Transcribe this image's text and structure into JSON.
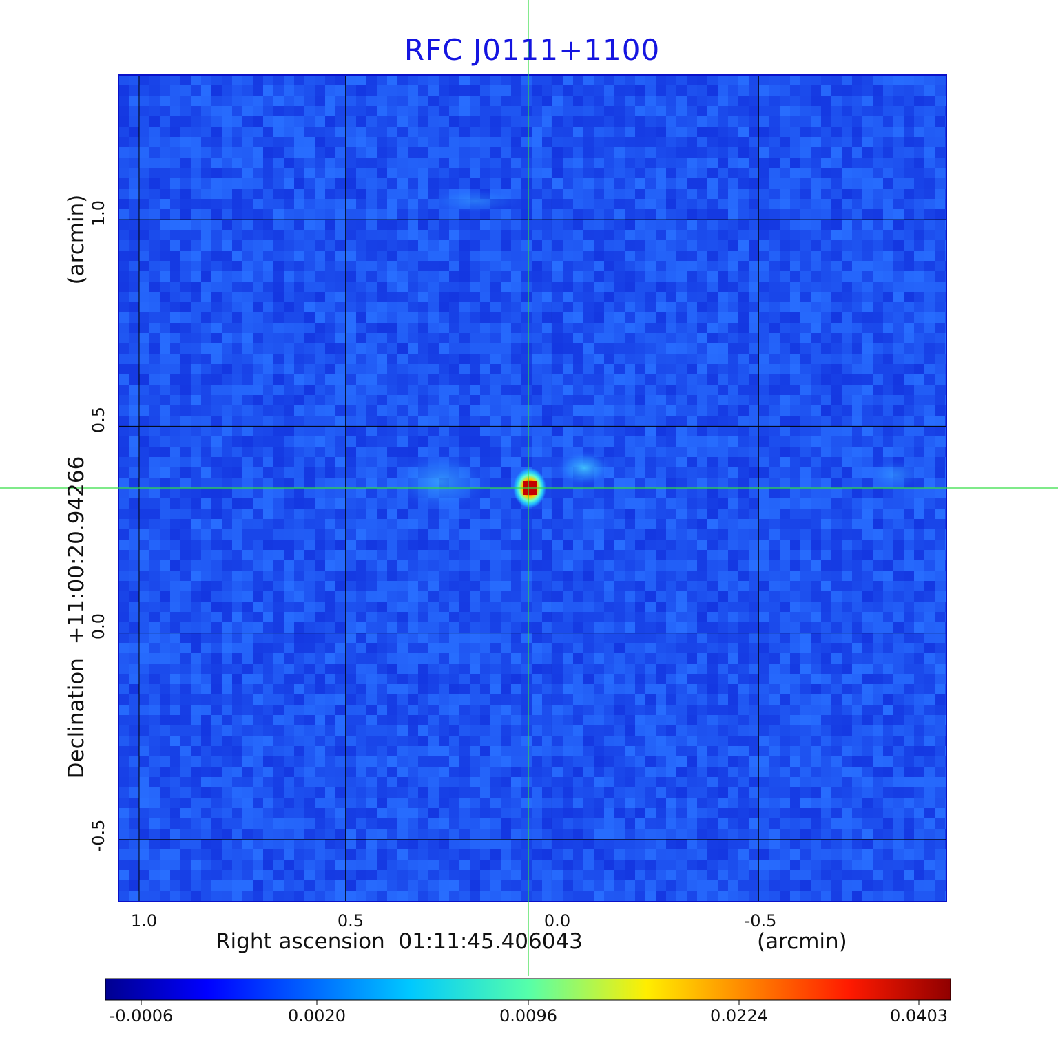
{
  "figure": {
    "title": "RFC J0111+1100",
    "xlabel": "Right ascension  01:11:45.406043",
    "xunit": "(arcmin)",
    "ylabel": "Declination  +11:00:20.94266",
    "yunit": "(arcmin)",
    "x_ticks": [
      "1.0",
      "0.5",
      "0.0",
      "-0.5"
    ],
    "y_ticks": [
      "1.0",
      "0.5",
      "0.0",
      "-0.5"
    ],
    "colorbar_ticks": [
      "-0.0006",
      "0.0020",
      "0.0096",
      "0.0224",
      "0.0403"
    ]
  },
  "chart_data": {
    "type": "heatmap",
    "title": "RFC J0111+1100",
    "xlabel": "Right ascension  01:11:45.406043 (arcmin)",
    "ylabel": "Declination  +11:00:20.94266 (arcmin)",
    "x_ticks": [
      1.0,
      0.5,
      0.0,
      -0.5
    ],
    "y_ticks": [
      1.0,
      0.5,
      0.0,
      -0.5
    ],
    "xlim": [
      1.05,
      -0.955
    ],
    "ylim": [
      -0.65,
      1.35
    ],
    "grid": true,
    "colormap": "jet",
    "colorbar": {
      "orientation": "horizontal",
      "placement": "bottom",
      "ticks": [
        -0.0006,
        0.002,
        0.0096,
        0.0224,
        0.0403
      ],
      "range": [
        -0.0006,
        0.0403
      ]
    },
    "crosshair": {
      "x": 0.058,
      "y": 0.35,
      "color": "#33dd44"
    },
    "source_peak": {
      "x": 0.058,
      "y": 0.35,
      "value": 0.0403
    }
  },
  "colors": {
    "title": "#1515e0",
    "grid": "#000000",
    "crosshair": "#33dd44",
    "frame": "#0a10c8",
    "background_blue": "#1f4bf5"
  }
}
